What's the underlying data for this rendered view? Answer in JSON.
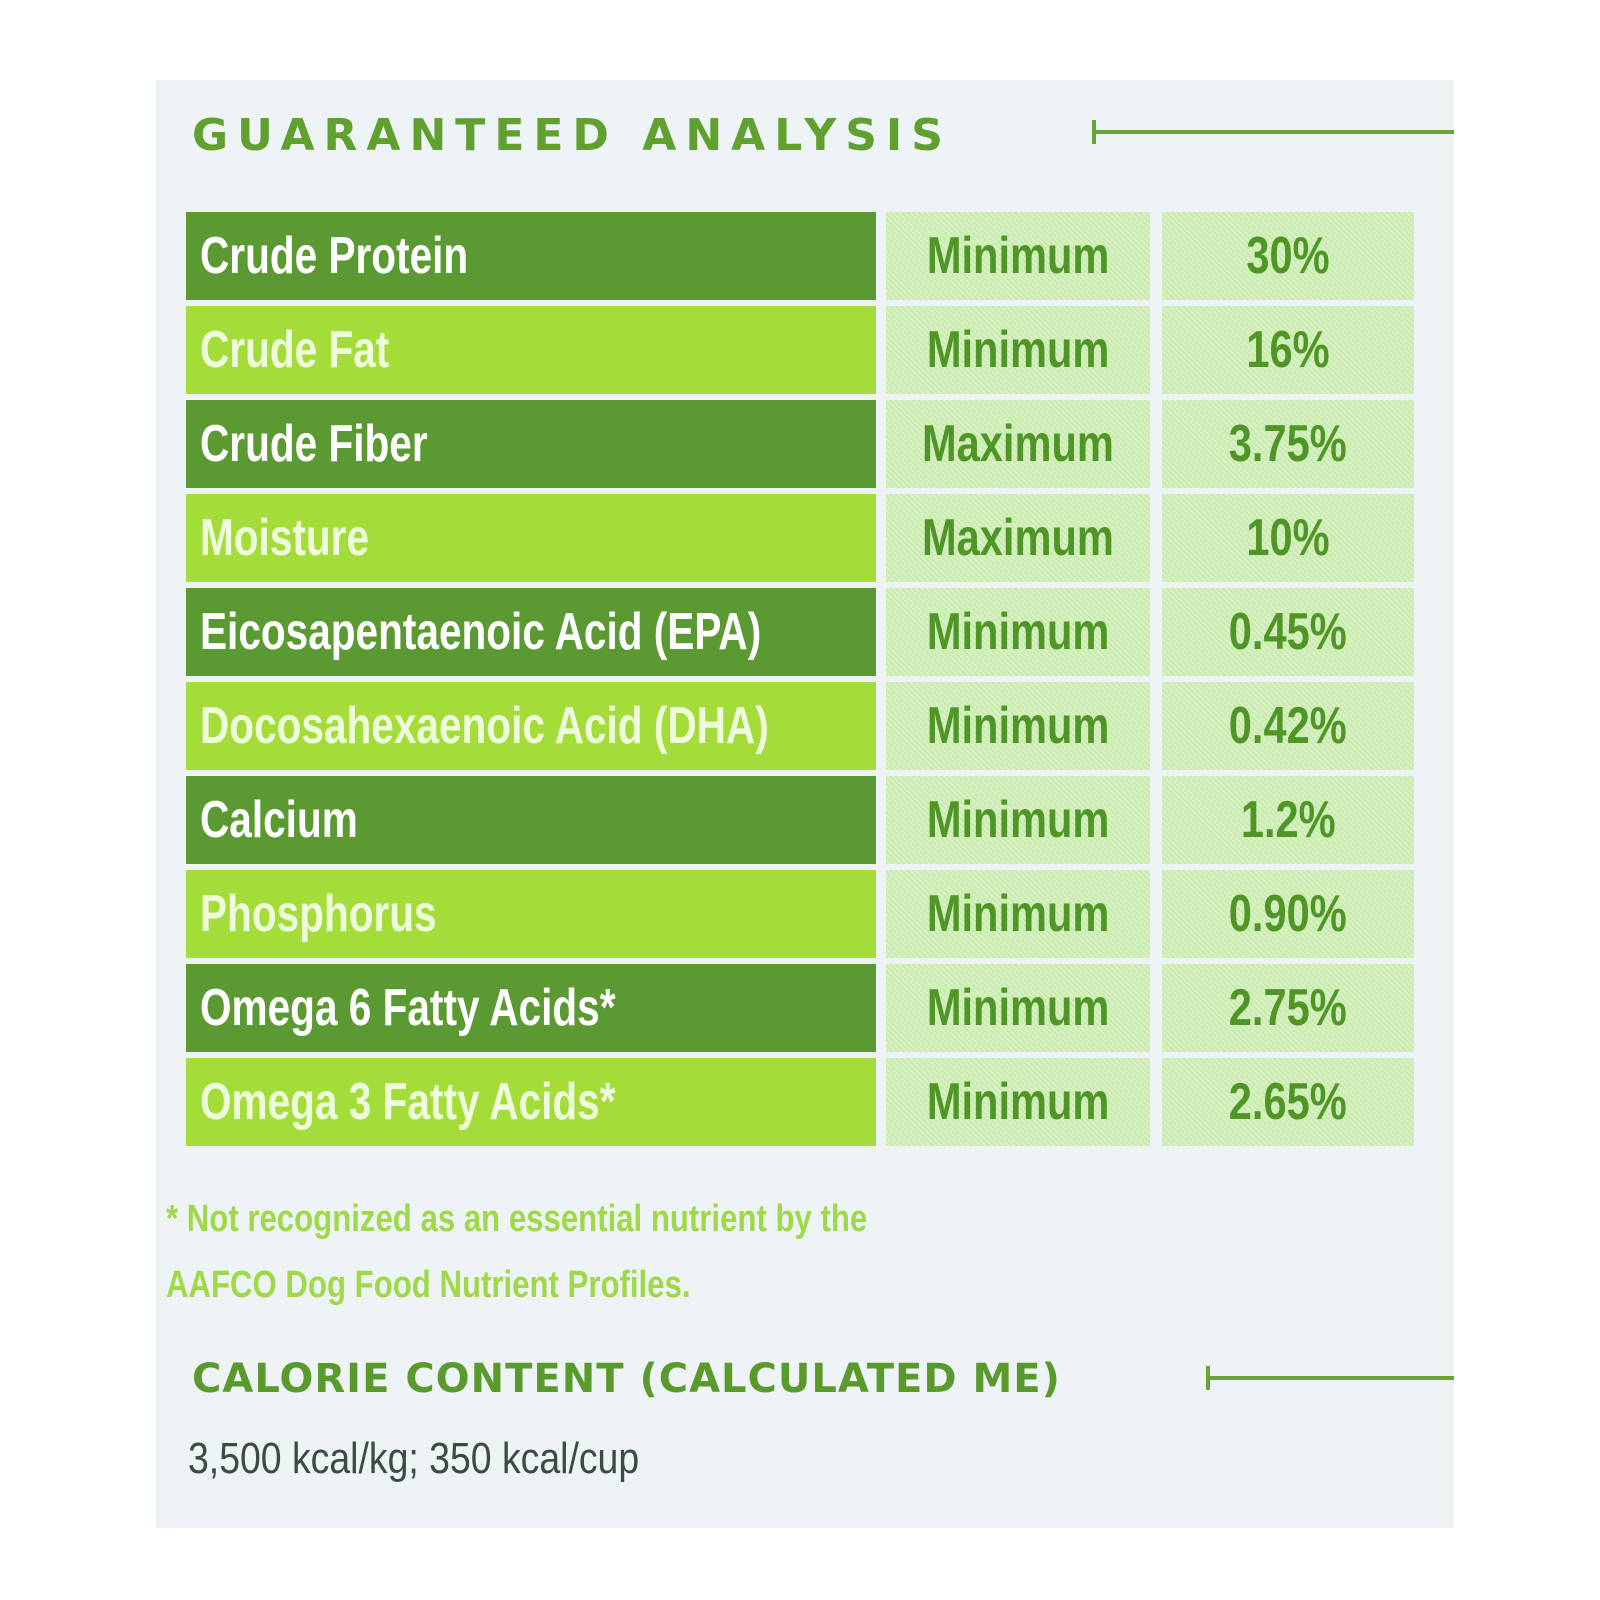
{
  "guaranteed_analysis": {
    "title": "GUARANTEED ANALYSIS",
    "rows": [
      {
        "nutrient": "Crude Protein",
        "type": "Minimum",
        "value": "30%"
      },
      {
        "nutrient": "Crude Fat",
        "type": "Minimum",
        "value": "16%"
      },
      {
        "nutrient": "Crude Fiber",
        "type": "Maximum",
        "value": "3.75%"
      },
      {
        "nutrient": "Moisture",
        "type": "Maximum",
        "value": "10%"
      },
      {
        "nutrient": "Eicosapentaenoic Acid  (EPA)",
        "type": "Minimum",
        "value": "0.45%"
      },
      {
        "nutrient": "Docosahexaenoic Acid  (DHA)",
        "type": "Minimum",
        "value": "0.42%"
      },
      {
        "nutrient": "Calcium",
        "type": "Minimum",
        "value": "1.2%"
      },
      {
        "nutrient": "Phosphorus",
        "type": "Minimum",
        "value": "0.90%"
      },
      {
        "nutrient": "Omega 6 Fatty Acids*",
        "type": "Minimum",
        "value": "2.75%"
      },
      {
        "nutrient": "Omega 3 Fatty Acids*",
        "type": "Minimum",
        "value": "2.65%"
      }
    ],
    "footnote_line1": "* Not recognized as an essential nutrient by the",
    "footnote_line2": "AAFCO Dog Food Nutrient Profiles."
  },
  "calorie_content": {
    "title": "CALORIE CONTENT (CALCULATED ME)",
    "value": "3,500 kcal/kg; 350 kcal/cup"
  },
  "colors": {
    "dark_row": "#5b9a32",
    "light_row": "#a4dd3a",
    "heading": "#5fa02f",
    "value_text": "#4f9627"
  }
}
